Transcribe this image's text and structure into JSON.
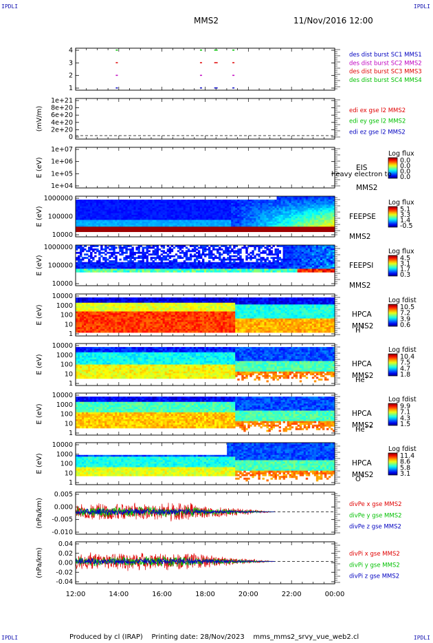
{
  "header": {
    "corner_left_top": "IPDLI",
    "corner_right_top": "IPDLI",
    "mission": "MMS2",
    "datetime": "11/Nov/2016 12:00",
    "corner_left_bottom": "IPDLI",
    "corner_right_bottom": "IPDLI"
  },
  "footer": {
    "produced_by": "Produced by cl (IRAP)",
    "printing_date": "Printing date: 28/Nov/2023",
    "file": "mms_mms2_srvy_vue_web2.cl"
  },
  "colors": {
    "red": "#e00000",
    "green": "#00c000",
    "blue": "#0000c0",
    "magenta": "#c000c0"
  },
  "chart_data": [
    {
      "type": "scatter",
      "name": "burst",
      "yticks": [
        "4",
        "3",
        "2",
        "1"
      ],
      "ylim": [
        0.5,
        4.5
      ],
      "legend": [
        {
          "label": "des dist burst SC1 MMS1",
          "color": "#0000c0"
        },
        {
          "label": "des dist burst SC2 MMS2",
          "color": "#c000c0"
        },
        {
          "label": "des dist burst SC3 MMS3",
          "color": "#e00000"
        },
        {
          "label": "des dist burst SC4 MMS4",
          "color": "#00c000"
        }
      ]
    },
    {
      "type": "line",
      "name": "edi",
      "ylabel": "(mV/m)",
      "yticks": [
        "1e+21",
        "8e+20",
        "6e+20",
        "4e+20",
        "2e+20",
        "0"
      ],
      "ylim": [
        0,
        1e+21
      ],
      "legend": [
        {
          "label": "edi ex gse l2 MMS2",
          "color": "#e00000"
        },
        {
          "label": "edi ey gse l2 MMS2",
          "color": "#00c000"
        },
        {
          "label": "edi ez gse l2 MMS2",
          "color": "#0000c0"
        }
      ]
    },
    {
      "type": "heatmap",
      "name": "eis",
      "ylabel": "E (eV)",
      "yticks": [
        "1e+07",
        "1e+06",
        "1e+05",
        "1e+04"
      ],
      "ylim": [
        10000.0,
        10000000.0
      ],
      "instrument": [
        "EIS",
        "MMS2"
      ],
      "overlay_text": "heavy electron to",
      "colorbar_title": "Log flux",
      "colorbar_values": [
        "0.0",
        "0.0",
        "0.0",
        "0.0"
      ]
    },
    {
      "type": "heatmap",
      "name": "feepse",
      "ylabel": "E (eV)",
      "yticks": [
        "1000000",
        "100000",
        "10000"
      ],
      "ylim": [
        10000.0,
        1000000.0
      ],
      "instrument": [
        "FEEPSE",
        "MMS2"
      ],
      "colorbar_title": "Log flux",
      "colorbar_values": [
        "5.1",
        "3.3",
        "1.4",
        "-0.5"
      ]
    },
    {
      "type": "heatmap",
      "name": "feepsi",
      "ylabel": "E (eV)",
      "yticks": [
        "1000000",
        "100000",
        "10000"
      ],
      "ylim": [
        10000.0,
        1000000.0
      ],
      "instrument": [
        "FEEPSI",
        "MMS2"
      ],
      "colorbar_title": "Log flux",
      "colorbar_values": [
        "4.5",
        "3.1",
        "1.7",
        "0.3"
      ]
    },
    {
      "type": "heatmap",
      "name": "hpca-h",
      "ylabel": "E (eV)",
      "yticks": [
        "10000",
        "1000",
        "100",
        "10",
        "1"
      ],
      "ylim": [
        1,
        30000
      ],
      "instrument": [
        "HPCA",
        "MMS2"
      ],
      "species": "H",
      "species_sup": "+",
      "colorbar_title": "Log fdist",
      "colorbar_values": [
        "10.5",
        "7.2",
        "3.9",
        "0.6"
      ]
    },
    {
      "type": "heatmap",
      "name": "hpca-he",
      "ylabel": "E (eV)",
      "yticks": [
        "10000",
        "1000",
        "100",
        "10",
        "1"
      ],
      "ylim": [
        1,
        30000
      ],
      "instrument": [
        "HPCA",
        "MMS2"
      ],
      "species": "He",
      "species_sup": "+",
      "colorbar_title": "Log fdist",
      "colorbar_values": [
        "10.4",
        "7.5",
        "4.7",
        "1.8"
      ]
    },
    {
      "type": "heatmap",
      "name": "hpca-hepp",
      "ylabel": "E (eV)",
      "yticks": [
        "10000",
        "1000",
        "100",
        "10",
        "1"
      ],
      "ylim": [
        1,
        30000
      ],
      "instrument": [
        "HPCA",
        "MMS2"
      ],
      "species": "He",
      "species_sup": "++",
      "colorbar_title": "Log fdist",
      "colorbar_values": [
        "9.9",
        "7.1",
        "4.3",
        "1.5"
      ]
    },
    {
      "type": "heatmap",
      "name": "hpca-o",
      "ylabel": "E (eV)",
      "yticks": [
        "10000",
        "1000",
        "100",
        "10",
        "1"
      ],
      "ylim": [
        1,
        30000
      ],
      "instrument": [
        "HPCA",
        "MMS2"
      ],
      "species": "O",
      "species_sup": "+",
      "colorbar_title": "Log fdist",
      "colorbar_values": [
        "11.4",
        "8.6",
        "5.8",
        "3.1"
      ]
    },
    {
      "type": "line",
      "name": "divpe",
      "ylabel": "(nPa/km)",
      "yticks": [
        "0.005",
        "0.000",
        "-0.005",
        "-0.010"
      ],
      "ylim": [
        -0.012,
        0.007
      ],
      "legend": [
        {
          "label": "divPe x gse MMS2",
          "color": "#e00000"
        },
        {
          "label": "divPe y gse MMS2",
          "color": "#00c000"
        },
        {
          "label": "divPe z gse MMS2",
          "color": "#0000c0"
        }
      ]
    },
    {
      "type": "line",
      "name": "divpi",
      "ylabel": "(nPa/km)",
      "yticks": [
        "0.04",
        "0.02",
        "0.00",
        "-0.02",
        "-0.04"
      ],
      "ylim": [
        -0.05,
        0.05
      ],
      "legend": [
        {
          "label": "divPi x gse MMS2",
          "color": "#e00000"
        },
        {
          "label": "divPi y gse MMS2",
          "color": "#00c000"
        },
        {
          "label": "divPi z gse MMS2",
          "color": "#0000c0"
        }
      ]
    }
  ],
  "xaxis": {
    "ticks": [
      "12:00",
      "14:00",
      "16:00",
      "18:00",
      "20:00",
      "22:00",
      "00:00"
    ]
  }
}
